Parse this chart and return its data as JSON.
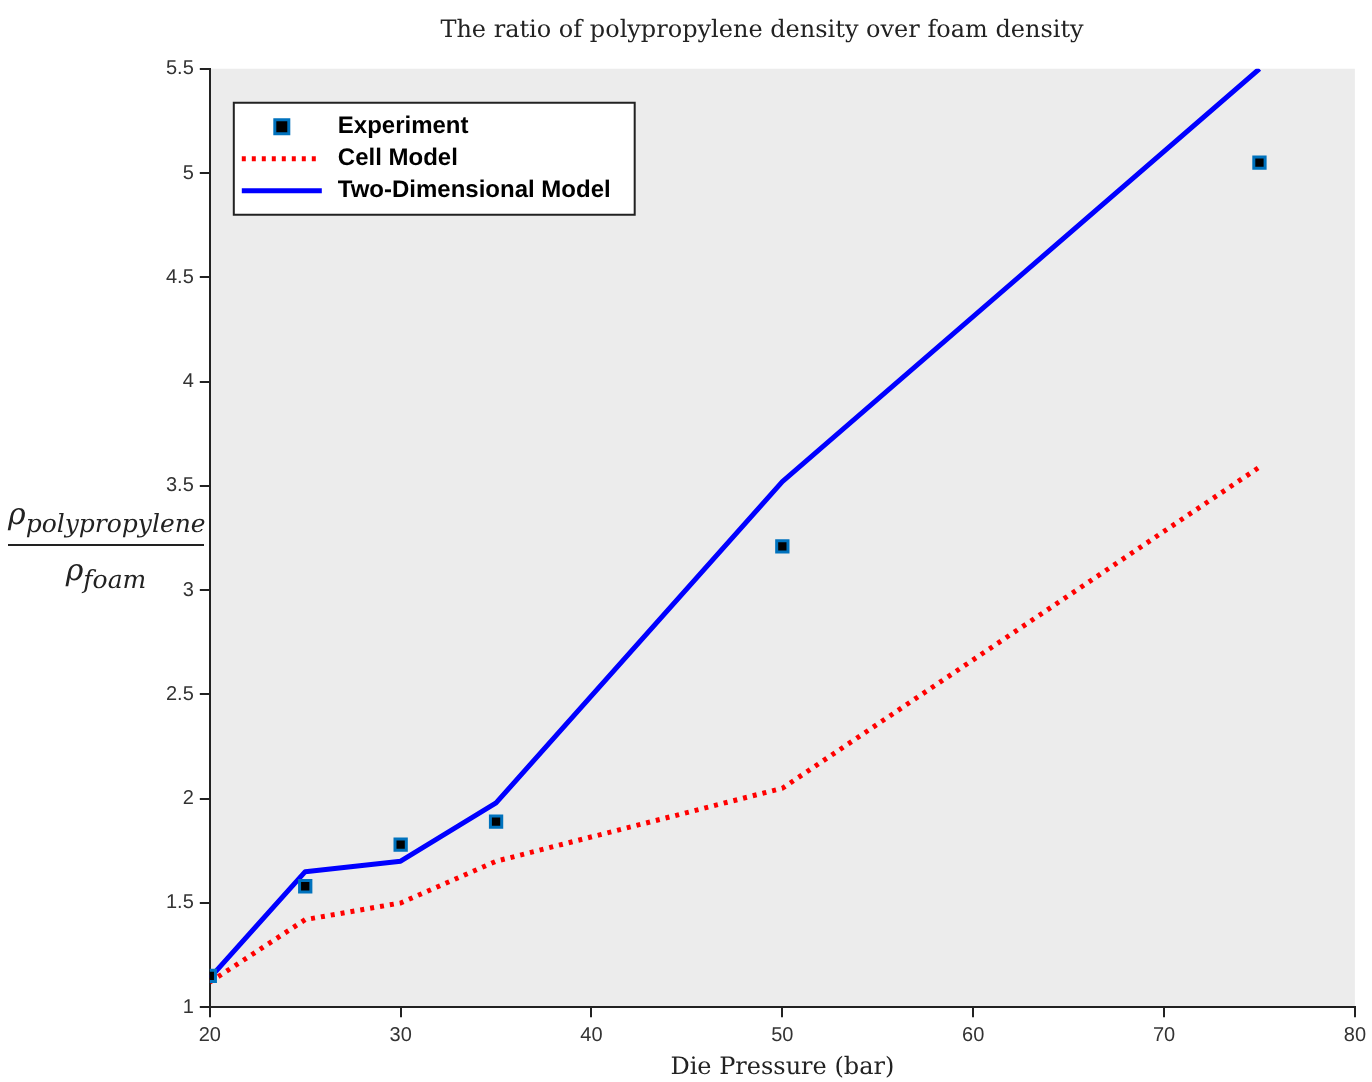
{
  "chart_data": {
    "type": "line",
    "title": "The ratio of polypropylene density over foam density",
    "xlabel": "Die Pressure (bar)",
    "ylabel": "ρ$_{polypropylene}$ ρ$_{foam}$",
    "x": [
      20,
      25,
      30,
      35,
      50,
      75
    ],
    "series": [
      {
        "name": "Experiment",
        "type": "scatter",
        "color": "#000000",
        "marker": "square",
        "values": [
          1.15,
          1.58,
          1.78,
          1.89,
          3.21,
          5.05
        ]
      },
      {
        "name": "Cell Model",
        "color": "#ff0000",
        "line_style": "dotted",
        "values": [
          1.12,
          1.42,
          1.5,
          1.7,
          2.05,
          3.59
        ]
      },
      {
        "name": "Two-Dimensional Model",
        "color": "#0000ff",
        "line_style": "solid",
        "values": [
          1.14,
          1.65,
          1.7,
          1.98,
          3.52,
          5.5
        ]
      }
    ],
    "xlim": [
      20,
      80
    ],
    "xticks": [
      20,
      30,
      40,
      50,
      60,
      70,
      80
    ],
    "ylim": [
      1,
      5.5
    ],
    "yticks": [
      1,
      1.5,
      2,
      2.5,
      3,
      3.5,
      4,
      4.5,
      5,
      5.5
    ],
    "grid": false,
    "legend": "top left"
  }
}
